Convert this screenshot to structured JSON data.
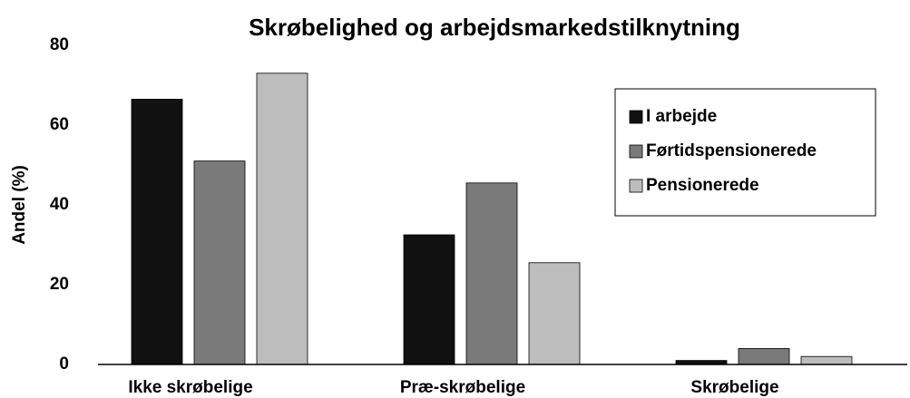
{
  "chart_data": {
    "type": "bar",
    "title": "Skrøbelighed og arbejdsmarkedstilknytning",
    "y_label": "Andel (%)",
    "categories": [
      "Ikke skrøbelige",
      "Præ-skrøbelige",
      "Skrøbelige"
    ],
    "series": [
      {
        "name": "I arbejde",
        "color": "#111111",
        "values": [
          66.5,
          32.5,
          1
        ]
      },
      {
        "name": "Førtidspensionerede",
        "color": "#7a7a7a",
        "values": [
          51,
          45.5,
          4
        ]
      },
      {
        "name": "Pensionerede",
        "color": "#bdbdbd",
        "values": [
          73,
          25.5,
          2
        ]
      }
    ],
    "ylim": [
      0,
      80
    ],
    "yticks": [
      0,
      20,
      40,
      60,
      80
    ],
    "legend": "upper right"
  }
}
